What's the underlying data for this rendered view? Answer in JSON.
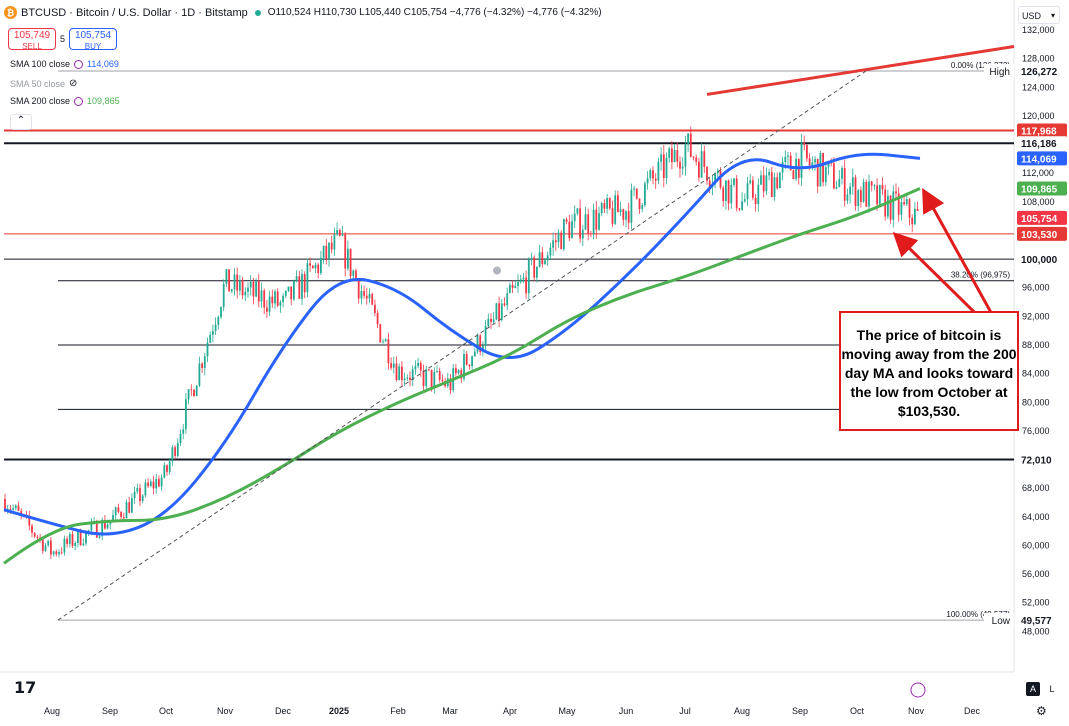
{
  "header": {
    "symbol": "BTCUSD · Bitcoin / U.S. Dollar · 1D · Bitstamp",
    "ohlc": "O110,524 H110,730 L105,440 C105,754 −4,776 (−4.32%) −4,776 (−4.32%)",
    "coin_glyph": "₿"
  },
  "trade": {
    "sell_price": "105,749",
    "sell_label": "SELL",
    "spread": "5",
    "buy_price": "105,754",
    "buy_label": "BUY"
  },
  "indicators": [
    {
      "label": "SMA 100 close",
      "value": "114,069",
      "color": "#2962ff",
      "visible": true
    },
    {
      "label": "SMA 50 close",
      "value": "",
      "color": "#9598a1",
      "visible": false
    },
    {
      "label": "SMA 200 close",
      "value": "109,865",
      "color": "#4caf50",
      "visible": true
    }
  ],
  "currency": "USD",
  "annotation": "The price of bitcoin is moving away from the 200 day MA and looks toward the low from October at $103,530.",
  "chart_data": {
    "type": "line",
    "series_type": "candlestick",
    "ylim": [
      44000,
      132000
    ],
    "yticks": [
      48000,
      52000,
      56000,
      60000,
      64000,
      68000,
      72000,
      76000,
      80000,
      84000,
      88000,
      92000,
      96000,
      100000,
      104000,
      108000,
      112000,
      116000,
      120000,
      124000,
      128000,
      132000
    ],
    "ytick_labels": [
      "48,000",
      "52,000",
      "56,000",
      "60,000",
      "64,000",
      "68,000",
      "72,000",
      "76,000",
      "80,000",
      "84,000",
      "88,000",
      "92,000",
      "96,000",
      "100,000",
      "104,000",
      "108,000",
      "112,000",
      "116,000",
      "120,000",
      "124,000",
      "128,000",
      "132,000"
    ],
    "x_tick_labels": [
      "Aug",
      "Sep",
      "Oct",
      "Nov",
      "Dec",
      "2025",
      "Feb",
      "Mar",
      "Apr",
      "May",
      "Jun",
      "Jul",
      "Aug",
      "Sep",
      "Oct",
      "Nov",
      "Dec"
    ],
    "series": [
      {
        "name": "BTCUSD",
        "color_up": "#22ab94",
        "color_down": "#f23645",
        "x": [
          "Jul",
          "Aug",
          "Sep",
          "Oct",
          "Nov",
          "Dec",
          "Jan",
          "Feb",
          "Mar",
          "Apr",
          "May",
          "Jun",
          "Jul",
          "Aug",
          "Sep",
          "Oct",
          "Nov"
        ],
        "values": [
          66500,
          59000,
          63500,
          70000,
          96500,
          93500,
          102500,
          84500,
          82500,
          94500,
          104500,
          107000,
          115800,
          108000,
          114000,
          109500,
          105754
        ]
      },
      {
        "name": "SMA 100 close",
        "color": "#2962ff",
        "x": [
          "Jul",
          "Aug",
          "Sep",
          "Oct",
          "Nov",
          "Dec",
          "Jan",
          "Feb",
          "Mar",
          "Apr",
          "May",
          "Jun",
          "Jul",
          "Aug",
          "Sep",
          "Oct",
          "Nov"
        ],
        "values": [
          65000,
          63000,
          61000,
          64000,
          74000,
          88000,
          98000,
          96000,
          90000,
          85000,
          90000,
          97500,
          106000,
          115000,
          112000,
          115000,
          114069
        ]
      },
      {
        "name": "SMA 200 close",
        "color": "#4caf50",
        "x": [
          "Jul",
          "Aug",
          "Sep",
          "Oct",
          "Nov",
          "Dec",
          "Jan",
          "Feb",
          "Mar",
          "Apr",
          "May",
          "Jun",
          "Jul",
          "Aug",
          "Sep",
          "Oct",
          "Nov"
        ],
        "values": [
          57500,
          62500,
          63500,
          63500,
          66500,
          71000,
          76000,
          80000,
          83000,
          86500,
          91500,
          95000,
          97500,
          100500,
          103500,
          106000,
          109865
        ]
      }
    ],
    "trend_lines": [
      {
        "name": "upper-trend",
        "color": "#e53935",
        "points": [
          [
            "Jul",
            123000
          ],
          [
            "Dec",
            130000
          ]
        ]
      },
      {
        "name": "diagonal-dashed",
        "color": "#555555",
        "dashed": true,
        "points": [
          [
            "Aug",
            49577
          ],
          [
            "Oct",
            126272
          ]
        ]
      }
    ],
    "horizontal_levels": [
      {
        "value": 117968,
        "label": "117,968",
        "color": "#e53935",
        "thick": true
      },
      {
        "value": 116186,
        "label": "116,186",
        "color": "#131722",
        "thick": true
      },
      {
        "value": 103530,
        "label": "103,530",
        "color": "#e53935",
        "thick": false
      },
      {
        "value": 100000,
        "label": "100,000",
        "color": "#131722",
        "thick": false
      },
      {
        "value": 96975,
        "label": "38.20% (96,975)",
        "color": "#131722",
        "thick": false
      },
      {
        "value": 88000,
        "label": "",
        "color": "#131722",
        "thick": false
      },
      {
        "value": 79000,
        "label": "",
        "color": "#131722",
        "thick": false
      },
      {
        "value": 72010,
        "label": "72,010",
        "color": "#131722",
        "thick": true
      },
      {
        "value": 126272,
        "label": "0.00% (126,272)",
        "color": "#787b86",
        "thick": false
      },
      {
        "value": 49577,
        "label": "100.00% (49,577)",
        "color": "#787b86",
        "thick": false
      }
    ],
    "price_labels": [
      {
        "text": "126,272",
        "tag": "High",
        "value": 126272,
        "bg": "#ffffff",
        "fg": "#131722"
      },
      {
        "text": "117,968",
        "value": 117968,
        "bg": "#e53935",
        "fg": "#ffffff"
      },
      {
        "text": "116,186",
        "value": 116186,
        "bg": "#ffffff",
        "fg": "#131722"
      },
      {
        "text": "114,069",
        "value": 114069,
        "bg": "#2962ff",
        "fg": "#ffffff"
      },
      {
        "text": "109,865",
        "value": 109865,
        "bg": "#4caf50",
        "fg": "#ffffff"
      },
      {
        "text": "105,754",
        "value": 105754,
        "bg": "#f23645",
        "fg": "#ffffff"
      },
      {
        "text": "103,530",
        "value": 103530,
        "bg": "#e53935",
        "fg": "#ffffff"
      },
      {
        "text": "100,000",
        "value": 100000,
        "bg": "#ffffff",
        "fg": "#131722"
      },
      {
        "text": "72,010",
        "value": 72010,
        "bg": "#ffffff",
        "fg": "#131722"
      },
      {
        "text": "49,577",
        "tag": "Low",
        "value": 49577,
        "bg": "#ffffff",
        "fg": "#131722"
      }
    ]
  },
  "footer": {
    "logo": "17",
    "auto": "A",
    "log": "L",
    "settings_icon": "gear-icon"
  }
}
